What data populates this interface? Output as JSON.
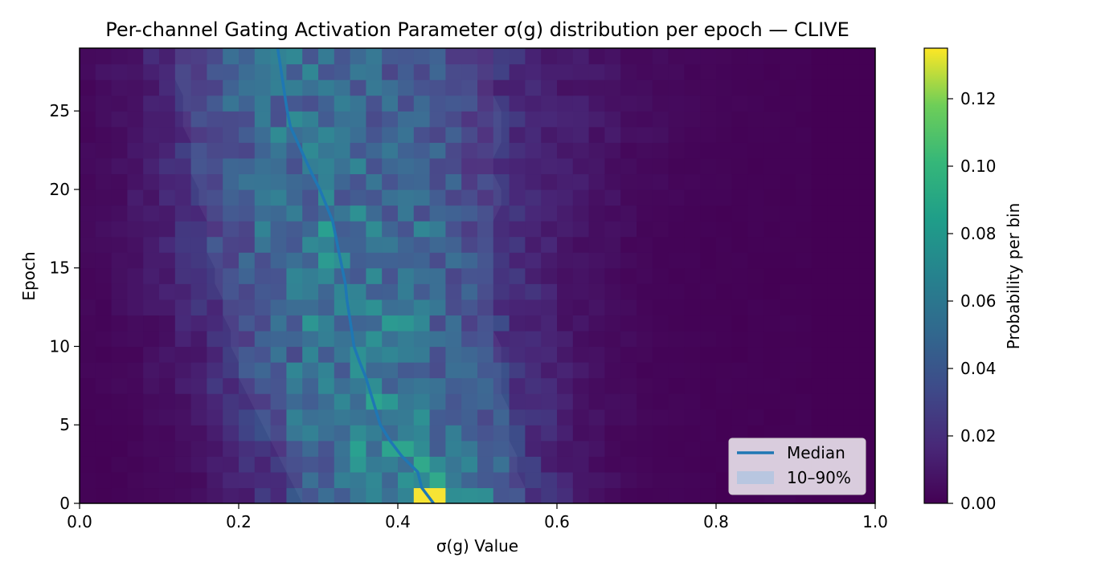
{
  "chart_data": {
    "type": "heatmap",
    "title": "Per-channel Gating Activation Parameter σ(g) distribution per epoch — CLIVE",
    "xlabel": "σ(g) Value",
    "ylabel": "Epoch",
    "xlim": [
      0.0,
      1.0
    ],
    "ylim": [
      0,
      29
    ],
    "x_ticks": [
      "0.0",
      "0.2",
      "0.4",
      "0.6",
      "0.8",
      "1.0"
    ],
    "y_ticks": [
      "0",
      "5",
      "10",
      "15",
      "20",
      "25"
    ],
    "x_bins": 50,
    "epochs": 29,
    "colormap": "viridis",
    "colorbar": {
      "label": "Probability per bin",
      "range": [
        0.0,
        0.135
      ],
      "ticks": [
        "0.00",
        "0.02",
        "0.04",
        "0.06",
        "0.08",
        "0.10",
        "0.12"
      ]
    },
    "legend": {
      "placement": "lower-right",
      "entries": [
        {
          "label": "Median",
          "color": "#1f77b4"
        },
        {
          "label": "10–90%",
          "color": "#b8c6e0"
        }
      ]
    },
    "series": [
      {
        "name": "Median",
        "color": "#1f77b4",
        "points": [
          [
            0.445,
            0
          ],
          [
            0.43,
            1
          ],
          [
            0.425,
            2
          ],
          [
            0.405,
            3
          ],
          [
            0.39,
            4
          ],
          [
            0.378,
            5
          ],
          [
            0.372,
            6
          ],
          [
            0.366,
            7
          ],
          [
            0.36,
            8
          ],
          [
            0.352,
            9
          ],
          [
            0.345,
            10
          ],
          [
            0.342,
            11
          ],
          [
            0.339,
            12
          ],
          [
            0.336,
            13
          ],
          [
            0.334,
            14
          ],
          [
            0.33,
            15
          ],
          [
            0.326,
            16
          ],
          [
            0.322,
            17
          ],
          [
            0.318,
            18
          ],
          [
            0.31,
            19
          ],
          [
            0.302,
            20
          ],
          [
            0.292,
            21
          ],
          [
            0.283,
            22
          ],
          [
            0.274,
            23
          ],
          [
            0.265,
            24
          ],
          [
            0.261,
            25
          ],
          [
            0.258,
            26
          ],
          [
            0.255,
            27
          ],
          [
            0.252,
            28
          ],
          [
            0.249,
            29
          ]
        ]
      },
      {
        "name": "10–90%",
        "color": "#b8c6e0",
        "low": [
          0.28,
          0.27,
          0.26,
          0.25,
          0.24,
          0.23,
          0.22,
          0.21,
          0.2,
          0.2,
          0.19,
          0.19,
          0.18,
          0.18,
          0.17,
          0.17,
          0.16,
          0.16,
          0.16,
          0.15,
          0.15,
          0.14,
          0.14,
          0.14,
          0.13,
          0.13,
          0.13,
          0.12,
          0.12,
          0.12
        ],
        "high": [
          0.56,
          0.56,
          0.55,
          0.55,
          0.54,
          0.54,
          0.54,
          0.53,
          0.53,
          0.53,
          0.53,
          0.52,
          0.52,
          0.52,
          0.52,
          0.52,
          0.52,
          0.52,
          0.52,
          0.53,
          0.53,
          0.52,
          0.52,
          0.53,
          0.53,
          0.53,
          0.52,
          0.52,
          0.52,
          0.52
        ]
      }
    ],
    "grid": false
  }
}
